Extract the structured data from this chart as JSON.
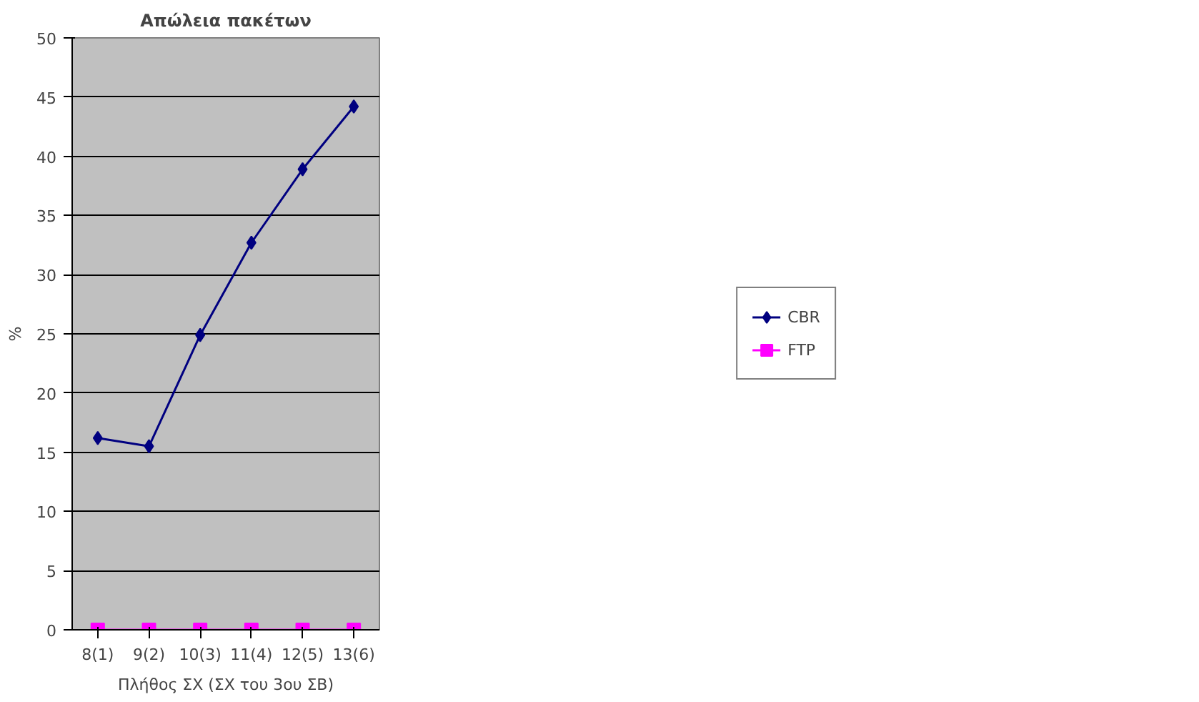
{
  "chart_data": {
    "type": "line",
    "title": "Απώλεια πακέτων",
    "xlabel": "Πλήθος ΣΧ (ΣΧ του 3ου ΣΒ)",
    "ylabel": "%",
    "categories": [
      "8(1)",
      "9(2)",
      "10(3)",
      "11(4)",
      "12(5)",
      "13(6)"
    ],
    "series": [
      {
        "name": "CBR",
        "color": "#000080",
        "marker": "diamond",
        "values": [
          16.2,
          15.5,
          24.9,
          32.7,
          38.9,
          44.2
        ]
      },
      {
        "name": "FTP",
        "color": "#ff00ff",
        "marker": "square",
        "values": [
          0,
          0,
          0,
          0,
          0,
          0
        ]
      }
    ],
    "ylim": [
      0,
      50
    ],
    "yticks": [
      0,
      5,
      10,
      15,
      20,
      25,
      30,
      35,
      40,
      45,
      50
    ],
    "grid": "y",
    "legend": "right"
  }
}
